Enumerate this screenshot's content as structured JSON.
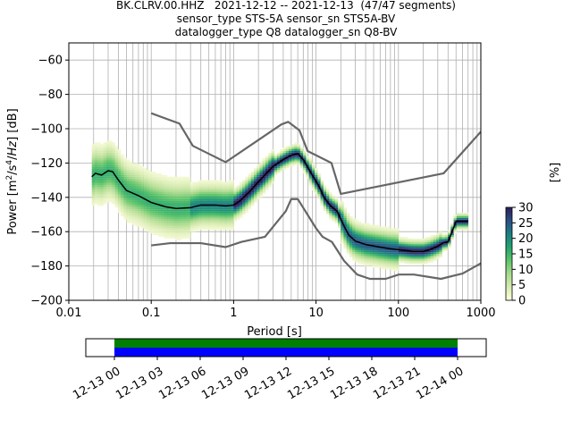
{
  "title": {
    "line1": "BK.CLRV.00.HHZ   2021-12-12 -- 2021-12-13  (47/47 segments)",
    "line2": "sensor_type STS-5A sensor_sn STS5A-BV",
    "line3": "datalogger_type Q8 datalogger_sn Q8-BV"
  },
  "chart_data": [
    {
      "type": "heatmap",
      "name": "PPSD",
      "xlabel": "Period [s]",
      "ylabel": "Power [m²/s⁴/Hz] [dB]",
      "x_scale": "log",
      "xlim": [
        0.01,
        1000
      ],
      "ylim": [
        -200,
        -50
      ],
      "xticks": [
        0.01,
        0.1,
        1,
        10,
        100,
        1000
      ],
      "xtick_labels": [
        "0.01",
        "0.1",
        "1",
        "10",
        "100",
        "1000"
      ],
      "yticks": [
        -200,
        -180,
        -160,
        -140,
        -120,
        -100,
        -80,
        -60
      ],
      "ytick_labels": [
        "−200",
        "−180",
        "−160",
        "−140",
        "−120",
        "−100",
        "−80",
        "−60"
      ],
      "grid": true,
      "colorbar": {
        "label": "[%]",
        "min": 0,
        "max": 30,
        "ticks": [
          0,
          5,
          10,
          15,
          20,
          25,
          30
        ],
        "tick_labels": [
          "0",
          "5",
          "10",
          "15",
          "20",
          "25",
          "30"
        ],
        "colors": [
          "#ffffe0",
          "#d6ebb0",
          "#a8d98c",
          "#5cc46a",
          "#23a36e",
          "#1e7d83",
          "#2c4e85",
          "#2d1e5a"
        ]
      },
      "series": [
        {
          "name": "NHNM",
          "color": "#666666",
          "points": [
            [
              0.1,
              -91
            ],
            [
              0.22,
              -97
            ],
            [
              0.32,
              -110
            ],
            [
              0.8,
              -119.5
            ],
            [
              3.8,
              -97.5
            ],
            [
              4.6,
              -96
            ],
            [
              6.3,
              -101
            ],
            [
              7.9,
              -113
            ],
            [
              15.4,
              -120
            ],
            [
              20,
              -138
            ],
            [
              354,
              -126
            ],
            [
              10000,
              -48
            ]
          ]
        },
        {
          "name": "NLNM",
          "color": "#666666",
          "points": [
            [
              0.1,
              -168
            ],
            [
              0.17,
              -166.7
            ],
            [
              0.4,
              -166.7
            ],
            [
              0.8,
              -169
            ],
            [
              1.24,
              -166
            ],
            [
              2.4,
              -163
            ],
            [
              4.3,
              -148
            ],
            [
              5,
              -141
            ],
            [
              6,
              -141
            ],
            [
              10,
              -158
            ],
            [
              12,
              -163
            ],
            [
              15.6,
              -166
            ],
            [
              21.9,
              -177
            ],
            [
              31.6,
              -185
            ],
            [
              45,
              -187.5
            ],
            [
              70,
              -187.5
            ],
            [
              101,
              -185
            ],
            [
              154,
              -185
            ],
            [
              328,
              -187.5
            ],
            [
              600,
              -184.4
            ],
            [
              10000,
              -151.5
            ]
          ]
        },
        {
          "name": "mean",
          "color": "#000000",
          "points": [
            [
              0.019,
              -128
            ],
            [
              0.021,
              -126
            ],
            [
              0.025,
              -127
            ],
            [
              0.03,
              -124.5
            ],
            [
              0.034,
              -125
            ],
            [
              0.04,
              -130
            ],
            [
              0.05,
              -136
            ],
            [
              0.07,
              -139
            ],
            [
              0.1,
              -143
            ],
            [
              0.15,
              -145.5
            ],
            [
              0.2,
              -146.5
            ],
            [
              0.3,
              -146
            ],
            [
              0.4,
              -144.5
            ],
            [
              0.6,
              -144.5
            ],
            [
              0.8,
              -145
            ],
            [
              1,
              -144.5
            ],
            [
              1.2,
              -142
            ],
            [
              1.5,
              -137.5
            ],
            [
              2,
              -131
            ],
            [
              3,
              -122
            ],
            [
              4,
              -118
            ],
            [
              5,
              -115.5
            ],
            [
              6,
              -114.5
            ],
            [
              7,
              -118
            ],
            [
              9,
              -127
            ],
            [
              11,
              -134
            ],
            [
              12.5,
              -140
            ],
            [
              15,
              -145
            ],
            [
              18,
              -148
            ],
            [
              22,
              -157
            ],
            [
              25,
              -162
            ],
            [
              30,
              -165.5
            ],
            [
              40,
              -167.5
            ],
            [
              60,
              -169
            ],
            [
              80,
              -170
            ],
            [
              100,
              -170.5
            ],
            [
              150,
              -171.5
            ],
            [
              200,
              -171.5
            ],
            [
              240,
              -170.5
            ],
            [
              300,
              -168.5
            ],
            [
              350,
              -166.5
            ],
            [
              400,
              -166
            ],
            [
              500,
              -154
            ],
            [
              700,
              -154
            ]
          ]
        }
      ]
    },
    {
      "type": "timeline",
      "name": "data coverage",
      "xlim": [
        "2021-12-12 22:00",
        "2021-12-14 02:00"
      ],
      "xtick_labels": [
        "12-13 00",
        "12-13 03",
        "12-13 06",
        "12-13 09",
        "12-13 12",
        "12-13 15",
        "12-13 18",
        "12-13 21",
        "12-14 00"
      ],
      "bars": [
        {
          "color": "#008000",
          "start": "2021-12-13 00:00",
          "end": "2021-12-14 00:00"
        },
        {
          "color": "#0000ff",
          "start": "2021-12-13 00:00",
          "end": "2021-12-14 00:00"
        }
      ]
    }
  ]
}
